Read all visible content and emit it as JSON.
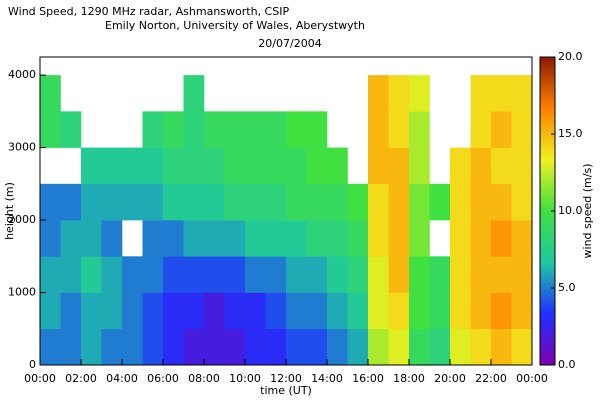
{
  "chart_data": {
    "type": "heatmap",
    "title": "Wind Speed,  1290 MHz radar, Ashmansworth,  CSIP",
    "subtitle": "Emily Norton, University of Wales, Aberystwyth",
    "date": "20/07/2004",
    "x_label": "time (UT)",
    "y_label": "height (m)",
    "colorbar_label": "wind speed (m/s)",
    "xlim": [
      0,
      24
    ],
    "xticks": [
      {
        "value": 0,
        "label": "00:00"
      },
      {
        "value": 2,
        "label": "02:00"
      },
      {
        "value": 4,
        "label": "04:00"
      },
      {
        "value": 6,
        "label": "06:00"
      },
      {
        "value": 8,
        "label": "08:00"
      },
      {
        "value": 10,
        "label": "10:00"
      },
      {
        "value": 12,
        "label": "12:00"
      },
      {
        "value": 14,
        "label": "14:00"
      },
      {
        "value": 16,
        "label": "16:00"
      },
      {
        "value": 18,
        "label": "18:00"
      },
      {
        "value": 20,
        "label": "20:00"
      },
      {
        "value": 22,
        "label": "22:00"
      },
      {
        "value": 24,
        "label": "00:00"
      }
    ],
    "ylim": [
      0,
      4250
    ],
    "yticks": [
      0,
      1000,
      2000,
      3000,
      4000
    ],
    "zlim": [
      0,
      20
    ],
    "zticks": [
      {
        "value": 0,
        "label": "0.0"
      },
      {
        "value": 5,
        "label": "5.0"
      },
      {
        "value": 10,
        "label": "10.0"
      },
      {
        "value": 15,
        "label": "15.0"
      },
      {
        "value": 20,
        "label": "20.0"
      }
    ],
    "colormap": [
      "#8000b0",
      "#2030ff",
      "#20c8a0",
      "#40e040",
      "#f0f020",
      "#ff8000",
      "#8b1a00"
    ],
    "x": [
      0.5,
      1.5,
      2.5,
      3.5,
      4.5,
      5.5,
      6.5,
      7.5,
      8.5,
      9.5,
      10.5,
      11.5,
      12.5,
      13.5,
      14.5,
      15.5,
      16.5,
      17.5,
      18.5,
      19.5,
      20.5,
      21.5,
      22.5,
      23.5
    ],
    "y": [
      250,
      750,
      1250,
      1750,
      2250,
      2750,
      3250,
      3750
    ],
    "z": [
      [
        5,
        5,
        6,
        5,
        5,
        4,
        3,
        2,
        2,
        2,
        3,
        3,
        4,
        4,
        5,
        6,
        12,
        13,
        9,
        8,
        13,
        14,
        15,
        14
      ],
      [
        6,
        5,
        6,
        6,
        5,
        4,
        3,
        3,
        2,
        3,
        3,
        4,
        5,
        5,
        6,
        7,
        13,
        14,
        10,
        9,
        14,
        15,
        16,
        15
      ],
      [
        6,
        6,
        7,
        6,
        5,
        5,
        4,
        4,
        4,
        4,
        5,
        5,
        6,
        6,
        7,
        8,
        13,
        15,
        10,
        9,
        14,
        15,
        15,
        15
      ],
      [
        5,
        6,
        6,
        5,
        null,
        5,
        5,
        6,
        6,
        6,
        7,
        7,
        7,
        8,
        8,
        9,
        14,
        15,
        11,
        null,
        14,
        15,
        16,
        15
      ],
      [
        5,
        5,
        6,
        6,
        6,
        6,
        7,
        7,
        7,
        8,
        8,
        8,
        9,
        9,
        9,
        10,
        14,
        15,
        11,
        10,
        14,
        15,
        15,
        14
      ],
      [
        null,
        null,
        7,
        7,
        7,
        7,
        8,
        8,
        8,
        9,
        9,
        9,
        9,
        10,
        10,
        null,
        15,
        15,
        12,
        null,
        14,
        15,
        14,
        14
      ],
      [
        9,
        8,
        null,
        null,
        null,
        8,
        9,
        8,
        9,
        9,
        9,
        9,
        10,
        10,
        null,
        null,
        15,
        14,
        12,
        null,
        null,
        14,
        15,
        14
      ],
      [
        9,
        null,
        null,
        null,
        null,
        null,
        null,
        8,
        null,
        null,
        null,
        null,
        null,
        null,
        null,
        null,
        15,
        14,
        13,
        null,
        null,
        14,
        14,
        14
      ]
    ]
  }
}
